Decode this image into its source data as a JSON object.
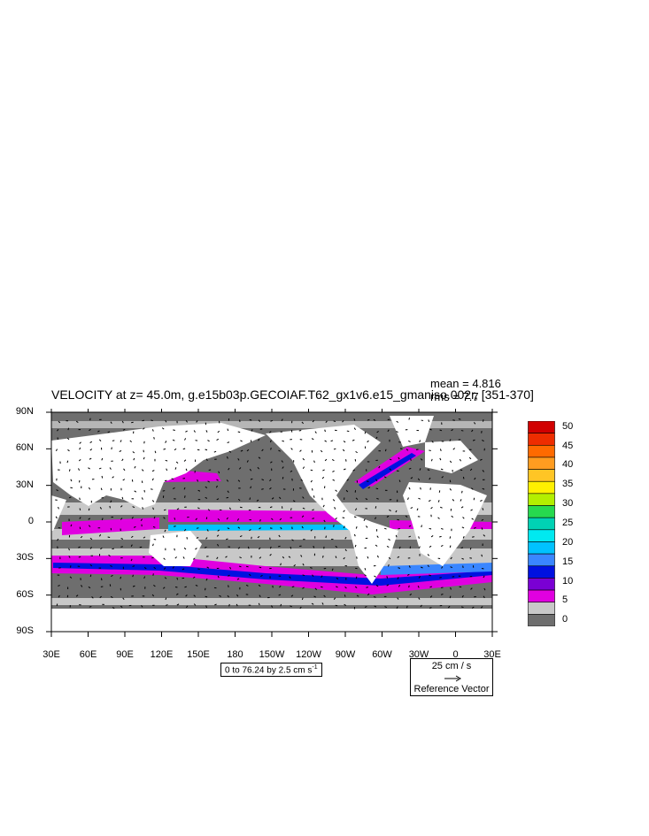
{
  "title": "VELOCITY at z=  45.0m, g.e15b03p.GECOIAF.T62_gx1v6.e15_gmaniso.002r, [351-370]",
  "stats": {
    "mean": "mean = 4.816",
    "rms": "rms = 7.7"
  },
  "lat_labels": [
    "90N",
    "60N",
    "30N",
    "0",
    "30S",
    "60S",
    "90S"
  ],
  "lon_labels": [
    "30E",
    "60E",
    "90E",
    "120E",
    "150E",
    "180",
    "150W",
    "120W",
    "90W",
    "60W",
    "30W",
    "0",
    "30E"
  ],
  "contour_info": {
    "text": "0 to 76.24 by 2.5 cm s",
    "sup": "-1"
  },
  "reference_vector": {
    "magnitude": "25 cm / s",
    "label": "Reference Vector"
  },
  "colorbar": {
    "labels": [
      "50",
      "45",
      "40",
      "35",
      "30",
      "25",
      "20",
      "15",
      "10",
      "5",
      "0"
    ],
    "colors": [
      "#d10000",
      "#ee2d00",
      "#ff6a00",
      "#ff9c20",
      "#ffc525",
      "#fff000",
      "#b3ef00",
      "#27d94f",
      "#00d2b4",
      "#00e9f0",
      "#00c2ff",
      "#3a86ff",
      "#0011e0",
      "#7a00d4",
      "#e000e0",
      "#c8c8c8",
      "#6e6e6e"
    ]
  },
  "map_colors": {
    "land": "#ffffff",
    "low_speed": "#6e6e6e",
    "mid_speed": "#c8c8c8"
  }
}
